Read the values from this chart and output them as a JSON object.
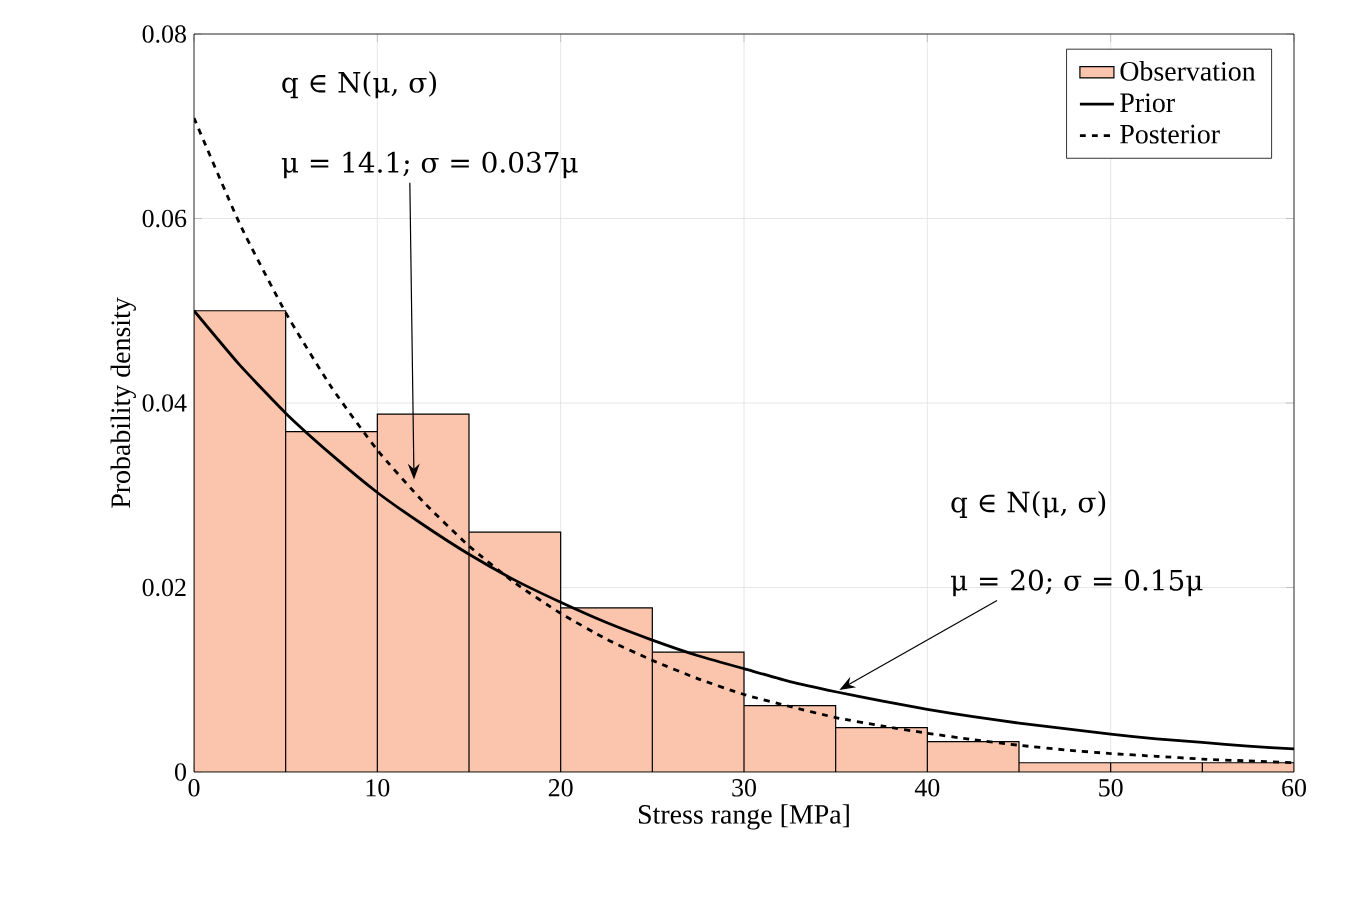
{
  "chart_data": {
    "type": "histogram",
    "xlabel": "Stress range [MPa]",
    "ylabel": "Probability density",
    "xlim": [
      0,
      60
    ],
    "ylim": [
      0,
      0.08
    ],
    "xticks": [
      0,
      10,
      20,
      30,
      40,
      50,
      60
    ],
    "yticks": [
      0,
      0.02,
      0.04,
      0.06,
      0.08
    ],
    "grid": true,
    "legend": "top right",
    "series": [
      {
        "type": "histogram",
        "name": "Observation",
        "color": "#fbc4ad",
        "bins": [
          0,
          5,
          10,
          15,
          20,
          25,
          30,
          35,
          40,
          45,
          50,
          55,
          60
        ],
        "values": [
          0.05,
          0.0369,
          0.0388,
          0.026,
          0.0178,
          0.013,
          0.0072,
          0.0048,
          0.0033,
          0.001,
          0.001,
          0.001
        ]
      },
      {
        "type": "line",
        "name": "Prior",
        "color": "#000000",
        "line_style": "solid",
        "x": [
          0,
          2.5,
          5,
          7.5,
          10,
          12.5,
          15,
          17.5,
          20,
          22.5,
          25,
          27.5,
          30,
          32.5,
          35,
          37.5,
          40,
          42.5,
          45,
          47.5,
          50,
          52.5,
          55,
          57.5,
          60
        ],
        "values": [
          0.05,
          0.0441,
          0.0389,
          0.0344,
          0.0303,
          0.0268,
          0.0236,
          0.0208,
          0.0184,
          0.0162,
          0.0143,
          0.0126,
          0.0112,
          0.0098,
          0.0087,
          0.0077,
          0.0068,
          0.006,
          0.0053,
          0.0047,
          0.0041,
          0.0036,
          0.0032,
          0.0028,
          0.0025
        ]
      },
      {
        "type": "line",
        "name": "Posterior",
        "color": "#000000",
        "line_style": "dashed",
        "x": [
          0,
          2.5,
          5,
          7.5,
          10,
          12.5,
          15,
          17.5,
          20,
          22.5,
          25,
          27.5,
          30,
          32.5,
          35,
          37.5,
          40,
          42.5,
          45,
          47.5,
          50,
          52.5,
          55,
          57.5,
          60
        ],
        "values": [
          0.0709,
          0.0594,
          0.0498,
          0.0417,
          0.0349,
          0.0293,
          0.0245,
          0.0205,
          0.0172,
          0.0144,
          0.0121,
          0.0101,
          0.0084,
          0.0071,
          0.0059,
          0.005,
          0.0042,
          0.0035,
          0.0029,
          0.0024,
          0.002,
          0.0017,
          0.0014,
          0.0012,
          0.001
        ]
      }
    ],
    "annotations": [
      "q ∈ N(μ, σ)",
      {
        "text": "μ = 14.1; σ = 0.037μ",
        "x": 12,
        "y": 0.0317
      },
      "q ∈ N(μ, σ)",
      {
        "text": "μ = 20; σ = 0.15μ",
        "x": 35.2,
        "y": 0.0089
      }
    ]
  }
}
